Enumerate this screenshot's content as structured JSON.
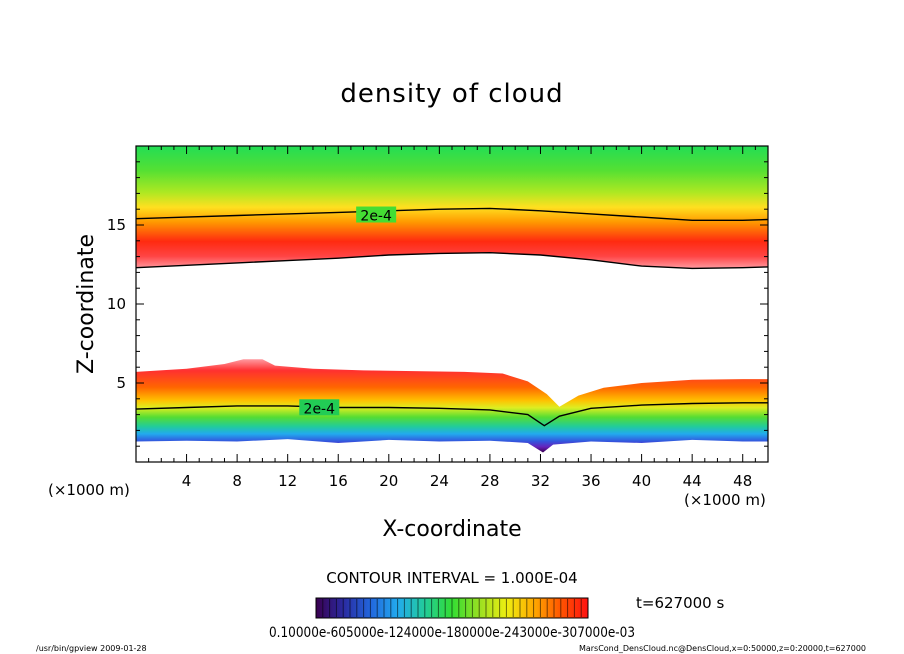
{
  "chart_data": {
    "type": "heatmap",
    "title": "density of cloud",
    "xlabel": "X-coordinate",
    "ylabel": "Z-coordinate",
    "x_unit_left": "(×1000 m)",
    "x_unit_right": "(×1000 m)",
    "xlim": [
      0,
      50
    ],
    "ylim": [
      0,
      20
    ],
    "x_ticks": [
      4,
      8,
      12,
      16,
      20,
      24,
      28,
      32,
      36,
      40,
      44,
      48
    ],
    "y_ticks": [
      5,
      10,
      15
    ],
    "contour_interval_text": "CONTOUR INTERVAL = 1.000E-04",
    "time_text": "t=627000 s",
    "colorbar_text": "0.10000e-605000e-124000e-180000e-243000e-307000e-03",
    "footer_left": "/usr/bin/gpview   2009-01-28",
    "footer_right": "MarsCond_DensCloud.nc@DensCloud,x=0:50000,z=0:20000,t=627000",
    "colorbar_colors": [
      "#3a0050",
      "#2a2aa0",
      "#2266dd",
      "#22aaee",
      "#22cc99",
      "#33dd33",
      "#99e022",
      "#eeee11",
      "#ffaa00",
      "#ff5500",
      "#ff1111"
    ],
    "contours": [
      {
        "label": "2e-4",
        "label_at": [
          19,
          15.6
        ],
        "points": [
          [
            0,
            15.4
          ],
          [
            4,
            15.5
          ],
          [
            8,
            15.6
          ],
          [
            12,
            15.7
          ],
          [
            16,
            15.8
          ],
          [
            20,
            15.9
          ],
          [
            24,
            16.0
          ],
          [
            28,
            16.05
          ],
          [
            32,
            15.9
          ],
          [
            36,
            15.7
          ],
          [
            40,
            15.5
          ],
          [
            44,
            15.3
          ],
          [
            48,
            15.3
          ],
          [
            50,
            15.35
          ]
        ]
      },
      {
        "label": "",
        "points": [
          [
            0,
            12.3
          ],
          [
            4,
            12.45
          ],
          [
            8,
            12.6
          ],
          [
            12,
            12.75
          ],
          [
            16,
            12.9
          ],
          [
            20,
            13.1
          ],
          [
            24,
            13.2
          ],
          [
            28,
            13.25
          ],
          [
            32,
            13.1
          ],
          [
            36,
            12.8
          ],
          [
            40,
            12.4
          ],
          [
            44,
            12.25
          ],
          [
            48,
            12.3
          ],
          [
            50,
            12.35
          ]
        ]
      },
      {
        "label": "2e-4",
        "label_at": [
          14.5,
          3.4
        ],
        "points": [
          [
            0,
            3.35
          ],
          [
            4,
            3.45
          ],
          [
            8,
            3.55
          ],
          [
            12,
            3.55
          ],
          [
            16,
            3.45
          ],
          [
            20,
            3.45
          ],
          [
            24,
            3.4
          ],
          [
            28,
            3.3
          ],
          [
            31,
            3.0
          ],
          [
            32.3,
            2.3
          ],
          [
            33.5,
            2.9
          ],
          [
            36,
            3.4
          ],
          [
            40,
            3.6
          ],
          [
            44,
            3.7
          ],
          [
            48,
            3.75
          ],
          [
            50,
            3.75
          ]
        ]
      }
    ],
    "bands": {
      "upper": {
        "bottom": [
          [
            0,
            12.3
          ],
          [
            4,
            12.45
          ],
          [
            8,
            12.6
          ],
          [
            12,
            12.75
          ],
          [
            16,
            12.9
          ],
          [
            20,
            13.1
          ],
          [
            24,
            13.2
          ],
          [
            28,
            13.25
          ],
          [
            32,
            13.1
          ],
          [
            36,
            12.8
          ],
          [
            40,
            12.4
          ],
          [
            44,
            12.25
          ],
          [
            48,
            12.3
          ],
          [
            50,
            12.35
          ]
        ]
      },
      "lower": {
        "top": [
          [
            0,
            5.7
          ],
          [
            4,
            5.9
          ],
          [
            7,
            6.2
          ],
          [
            8.5,
            6.5
          ],
          [
            10,
            6.5
          ],
          [
            11,
            6.1
          ],
          [
            14,
            5.9
          ],
          [
            18,
            5.8
          ],
          [
            22,
            5.75
          ],
          [
            26,
            5.7
          ],
          [
            29,
            5.6
          ],
          [
            31,
            5.1
          ],
          [
            32.5,
            4.3
          ],
          [
            33.5,
            3.5
          ],
          [
            35,
            4.2
          ],
          [
            37,
            4.7
          ],
          [
            40,
            5.0
          ],
          [
            44,
            5.2
          ],
          [
            48,
            5.25
          ],
          [
            50,
            5.25
          ]
        ],
        "floor": [
          [
            0,
            1.3
          ],
          [
            4,
            1.35
          ],
          [
            8,
            1.3
          ],
          [
            12,
            1.45
          ],
          [
            16,
            1.2
          ],
          [
            20,
            1.4
          ],
          [
            24,
            1.3
          ],
          [
            28,
            1.35
          ],
          [
            31,
            1.2
          ],
          [
            32.2,
            0.6
          ],
          [
            33,
            1.1
          ],
          [
            36,
            1.3
          ],
          [
            40,
            1.2
          ],
          [
            44,
            1.4
          ],
          [
            48,
            1.3
          ],
          [
            50,
            1.3
          ]
        ]
      }
    }
  }
}
